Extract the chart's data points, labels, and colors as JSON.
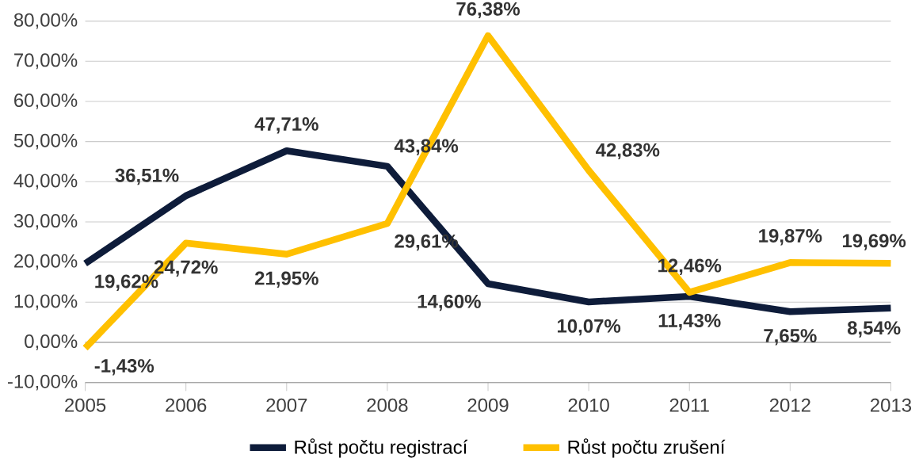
{
  "chart_data": {
    "type": "line",
    "x": [
      2005,
      2006,
      2007,
      2008,
      2009,
      2010,
      2011,
      2012,
      2013
    ],
    "series": [
      {
        "name": "Růst počtu registrací",
        "color": "#0e1c3a",
        "values": [
          19.62,
          36.51,
          47.71,
          43.84,
          14.6,
          10.07,
          11.43,
          7.65,
          8.54
        ],
        "value_labels": [
          "19,62%",
          "36,51%",
          "47,71%",
          "43,84%",
          "14,60%",
          "10,07%",
          "11,43%",
          "7,65%",
          "8,54%"
        ]
      },
      {
        "name": "Růst počtu zrušení",
        "color": "#ffc000",
        "values": [
          -1.43,
          24.72,
          21.95,
          29.61,
          76.38,
          42.83,
          12.46,
          19.87,
          19.69
        ],
        "value_labels": [
          "-1,43%",
          "24,72%",
          "21,95%",
          "29,61%",
          "76,38%",
          "42,83%",
          "12,46%",
          "19,87%",
          "19,69%"
        ]
      }
    ],
    "xlim": [
      2005,
      2013
    ],
    "xticks": [
      2005,
      2006,
      2007,
      2008,
      2009,
      2010,
      2011,
      2012,
      2013
    ],
    "ylim": [
      -10,
      80
    ],
    "yticks": [
      {
        "value": -10,
        "label": "-10,00%"
      },
      {
        "value": 0,
        "label": "0,00%"
      },
      {
        "value": 10,
        "label": "10,00%"
      },
      {
        "value": 20,
        "label": "20,00%"
      },
      {
        "value": 30,
        "label": "30,00%"
      },
      {
        "value": 40,
        "label": "40,00%"
      },
      {
        "value": 50,
        "label": "50,00%"
      },
      {
        "value": 60,
        "label": "60,00%"
      },
      {
        "value": 70,
        "label": "70,00%"
      },
      {
        "value": 80,
        "label": "80,00%"
      }
    ],
    "grid": "y",
    "legend": "bottom",
    "marker": "none",
    "line_style": "solid"
  }
}
